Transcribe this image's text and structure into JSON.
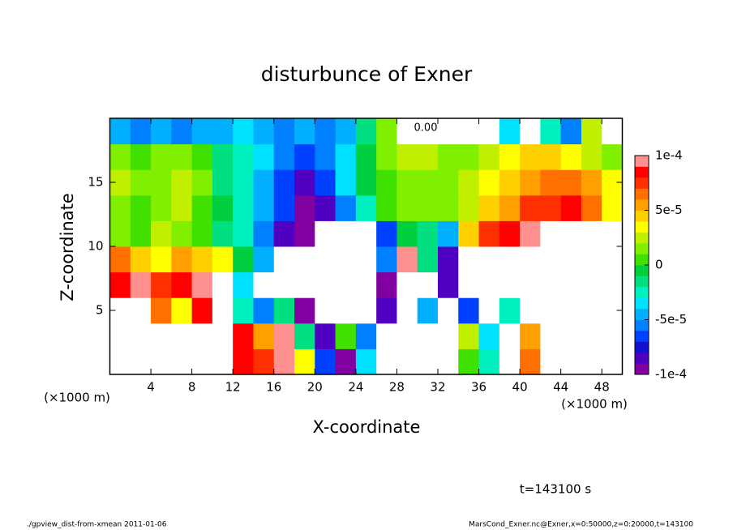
{
  "chart_data": {
    "type": "heatmap",
    "title": "disturbunce of Exner",
    "xlabel": "X-coordinate",
    "ylabel": "Z-coordinate",
    "xunit": "(×1000 m)",
    "contour_label": "0.00",
    "time_label": "t=143100 s",
    "footer_left": "./gpview_dist-from-xmean  2011-01-06",
    "footer_right": "MarsCond_Exner.nc@Exner,x=0:50000,z=0:20000,t=143100",
    "xlim": [
      0,
      50
    ],
    "ylim": [
      0,
      20
    ],
    "xticks": [
      4,
      8,
      12,
      16,
      20,
      24,
      28,
      32,
      36,
      40,
      44,
      48
    ],
    "yticks": [
      5,
      10,
      15
    ],
    "clim": [
      -0.0001,
      0.0001
    ],
    "cticks": [
      {
        "value": 0.0001,
        "label": "1e-4"
      },
      {
        "value": 5e-05,
        "label": "5e-5"
      },
      0,
      {
        "value": -5e-05,
        "label": "-5e-5"
      },
      {
        "value": -0.0001,
        "label": "-1e-4"
      }
    ],
    "colors": [
      "#8000a0",
      "#5000c0",
      "#1010d0",
      "#0040ff",
      "#0080ff",
      "#00b0ff",
      "#00e0ff",
      "#00f0c0",
      "#00e080",
      "#00d040",
      "#40e000",
      "#80f000",
      "#c0f000",
      "#ffff00",
      "#ffd000",
      "#ffa000",
      "#ff7000",
      "#ff3000",
      "#ff0000",
      "#ff9090"
    ],
    "over_color": "#ffffff",
    "x": [
      1,
      3,
      5,
      7,
      9,
      11,
      13,
      15,
      17,
      19,
      21,
      23,
      25,
      27,
      29,
      31,
      33,
      35,
      37,
      39,
      41,
      43,
      45,
      47,
      49
    ],
    "y": [
      1,
      3,
      5,
      7,
      9,
      11,
      13,
      15,
      17,
      19
    ],
    "z": [
      [
        0.00015,
        0.00015,
        0.00015,
        0.00015,
        0.00015,
        0.00015,
        8e-05,
        7e-05,
        9e-05,
        3e-05,
        -7e-05,
        -9e-05,
        -4e-05,
        0.00015,
        0.00015,
        0.00015,
        0.00015,
        0,
        -3e-05,
        0.00015,
        6e-05,
        0.00015,
        0.00015,
        0.00015,
        0.00015
      ],
      [
        0.00015,
        0.00015,
        0.00015,
        0.00015,
        0.00015,
        0.00015,
        8e-05,
        5e-05,
        9e-05,
        -2e-05,
        -8e-05,
        0,
        -6e-05,
        0.00015,
        0.00015,
        0.00015,
        0.00015,
        2e-05,
        -4e-05,
        0.00015,
        5e-05,
        0.00015,
        0.00015,
        0.00015,
        0.00015
      ],
      [
        0.00015,
        0.00015,
        6e-05,
        3e-05,
        8e-05,
        0.00015,
        -3e-05,
        -6e-05,
        -2e-05,
        -9e-05,
        0.00015,
        0.00015,
        0.00015,
        -8e-05,
        0.00015,
        -5e-05,
        0.00015,
        -7e-05,
        0.00015,
        -3e-05,
        0.00015,
        0.00015,
        0.00015,
        0.00015,
        0.00015
      ],
      [
        8e-05,
        9e-05,
        7e-05,
        8e-05,
        9e-05,
        0.00015,
        -4e-05,
        0.00015,
        0.00015,
        0.00015,
        0.00015,
        0.00015,
        0.00015,
        -9e-05,
        0.00015,
        0.00015,
        -8e-05,
        0.00015,
        0.00015,
        0.00015,
        0.00015,
        0.00015,
        0.00015,
        0.00015,
        0.00015
      ],
      [
        6e-05,
        4e-05,
        3e-05,
        5e-05,
        4e-05,
        3e-05,
        -1e-05,
        -5e-05,
        0.00015,
        0.00015,
        0.00015,
        0.00015,
        0.00015,
        -6e-05,
        9e-05,
        -2e-05,
        -8e-05,
        0.00015,
        0.00015,
        0.00015,
        0.00015,
        0.00015,
        0.00015,
        0.00015,
        0.00015
      ],
      [
        1e-05,
        0,
        2e-05,
        1e-05,
        0,
        -2e-05,
        -3e-05,
        -6e-05,
        -8e-05,
        -0.0001,
        0.00015,
        0.00015,
        0.00015,
        -7e-05,
        -1e-05,
        -2e-05,
        -5e-05,
        4e-05,
        7e-05,
        8e-05,
        9e-05,
        0.00015,
        0.00015,
        0.00015,
        0.00015
      ],
      [
        1e-05,
        0,
        1e-05,
        2e-05,
        0,
        -1e-05,
        -3e-05,
        -5e-05,
        -7e-05,
        -9e-05,
        -8e-05,
        -6e-05,
        -3e-05,
        0,
        1e-05,
        1e-05,
        1e-05,
        2e-05,
        4e-05,
        5e-05,
        7e-05,
        7e-05,
        8e-05,
        6e-05,
        3e-05
      ],
      [
        2e-05,
        1e-05,
        1e-05,
        2e-05,
        1e-05,
        -2e-05,
        -3e-05,
        -5e-05,
        -7e-05,
        -8e-05,
        -7e-05,
        -4e-05,
        -1e-05,
        0,
        1e-05,
        1e-05,
        1e-05,
        2e-05,
        3e-05,
        4e-05,
        5e-05,
        6e-05,
        6e-05,
        5e-05,
        3e-05
      ],
      [
        1e-05,
        0,
        1e-05,
        1e-05,
        0,
        -2e-05,
        -3e-05,
        -4e-05,
        -6e-05,
        -7e-05,
        -6e-05,
        -4e-05,
        -1e-05,
        1e-05,
        2e-05,
        2e-05,
        1e-05,
        1e-05,
        2e-05,
        3e-05,
        4e-05,
        4e-05,
        3e-05,
        2e-05,
        1e-05
      ],
      [
        -5e-05,
        -6e-05,
        -5e-05,
        -6e-05,
        -5e-05,
        -5e-05,
        -4e-05,
        -5e-05,
        -6e-05,
        -5e-05,
        -6e-05,
        -5e-05,
        -2e-05,
        1e-05,
        0.00015,
        0.00015,
        0.00015,
        0.00015,
        0.00015,
        -4e-05,
        0.00015,
        -3e-05,
        -6e-05,
        2e-05,
        0.00015
      ]
    ]
  }
}
